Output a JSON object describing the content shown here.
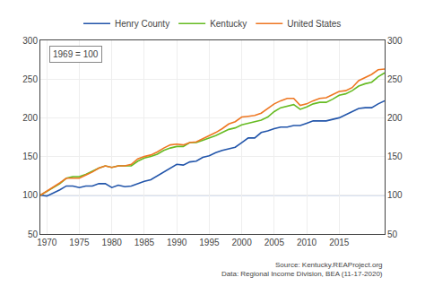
{
  "chart_data": {
    "type": "line",
    "x": [
      1969,
      1970,
      1971,
      1972,
      1973,
      1974,
      1975,
      1976,
      1977,
      1978,
      1979,
      1980,
      1981,
      1982,
      1983,
      1984,
      1985,
      1986,
      1987,
      1988,
      1989,
      1990,
      1991,
      1992,
      1993,
      1994,
      1995,
      1996,
      1997,
      1998,
      1999,
      2000,
      2001,
      2002,
      2003,
      2004,
      2005,
      2006,
      2007,
      2008,
      2009,
      2010,
      2011,
      2012,
      2013,
      2014,
      2015,
      2016,
      2017,
      2018,
      2019,
      2020,
      2021,
      2022
    ],
    "series": [
      {
        "name": "Henry County",
        "color": "#2255aa",
        "values": [
          100,
          99,
          103,
          107,
          112,
          112,
          110,
          112,
          112,
          115,
          115,
          110,
          113,
          111,
          112,
          115,
          118,
          120,
          125,
          131,
          136,
          140,
          139,
          143,
          144,
          149,
          151,
          155,
          158,
          160,
          162,
          168,
          174,
          174,
          181,
          183,
          186,
          188,
          188,
          190,
          190,
          193,
          196,
          196,
          196,
          198,
          200,
          204,
          208,
          212,
          213,
          213,
          218,
          222
        ]
      },
      {
        "name": "Kentucky",
        "color": "#66bb22",
        "values": [
          100,
          105,
          110,
          115,
          122,
          124,
          124,
          127,
          131,
          135,
          138,
          136,
          138,
          138,
          138,
          144,
          148,
          150,
          153,
          158,
          161,
          163,
          163,
          168,
          168,
          171,
          174,
          177,
          181,
          185,
          187,
          191,
          193,
          195,
          197,
          201,
          208,
          213,
          215,
          217,
          211,
          214,
          218,
          220,
          220,
          224,
          229,
          231,
          235,
          241,
          244,
          246,
          253,
          258
        ]
      },
      {
        "name": "United States",
        "color": "#ee7722",
        "values": [
          100,
          105,
          110,
          116,
          122,
          122,
          122,
          126,
          130,
          135,
          138,
          136,
          138,
          138,
          140,
          147,
          150,
          152,
          156,
          161,
          165,
          166,
          165,
          168,
          169,
          173,
          177,
          181,
          186,
          192,
          195,
          201,
          202,
          203,
          206,
          212,
          218,
          222,
          225,
          225,
          216,
          218,
          222,
          225,
          226,
          230,
          234,
          235,
          239,
          248,
          252,
          256,
          262,
          263
        ]
      }
    ],
    "xlim": [
      1969,
      2022
    ],
    "xticks": [
      1970,
      1975,
      1980,
      1985,
      1990,
      1995,
      2000,
      2005,
      2010,
      2015
    ],
    "ylim": [
      50,
      300
    ],
    "yticks": [
      50,
      100,
      150,
      200,
      250,
      300
    ],
    "y2lim": [
      50,
      300
    ],
    "y2ticks": [
      50,
      100,
      150,
      200,
      250,
      300
    ],
    "grid": true,
    "legend": "top",
    "annotation": "1969 = 100",
    "source": "Source: Kentucky.REAProject.org\nData: Regional Income Division, BEA (11-17-2020)",
    "reference_line": {
      "value": 100,
      "color": "#2255aa"
    }
  }
}
